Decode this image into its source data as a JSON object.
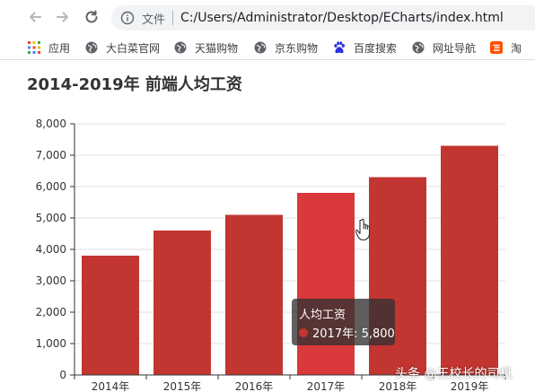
{
  "toolbar": {
    "address_label": "文件",
    "url": "C:/Users/Administrator/Desktop/ECharts/index.html"
  },
  "bookmarks": [
    {
      "label": "应用",
      "icon": "apps-grid-icon"
    },
    {
      "label": "大白菜官网",
      "icon": "globe-icon"
    },
    {
      "label": "天猫购物",
      "icon": "globe-icon"
    },
    {
      "label": "京东购物",
      "icon": "globe-icon"
    },
    {
      "label": "百度搜索",
      "icon": "baidu-paw-icon"
    },
    {
      "label": "网址导航",
      "icon": "globe-icon"
    },
    {
      "label": "淘",
      "icon": "taobao-icon"
    }
  ],
  "page": {
    "title": "2014-2019年 前端人均工资"
  },
  "colors": {
    "bar": "#c23531",
    "bar_highlight": "#d9393a",
    "tooltip_bg": "#323232"
  },
  "chart_data": {
    "type": "bar",
    "title": "2014-2019年 前端人均工资",
    "categories": [
      "2014年",
      "2015年",
      "2016年",
      "2017年",
      "2018年",
      "2019年"
    ],
    "series": [
      {
        "name": "人均工资",
        "values": [
          3800,
          4600,
          5100,
          5800,
          6300,
          7300
        ]
      }
    ],
    "y_ticks": [
      "0",
      "1,000",
      "2,000",
      "3,000",
      "4,000",
      "5,000",
      "6,000",
      "7,000",
      "8,000"
    ],
    "ylim": [
      0,
      8000
    ],
    "grid": true,
    "highlighted_index": 3
  },
  "tooltip": {
    "title": "人均工资",
    "row": "2017年: 5,800"
  },
  "watermark": "头条 @王校长的司机"
}
